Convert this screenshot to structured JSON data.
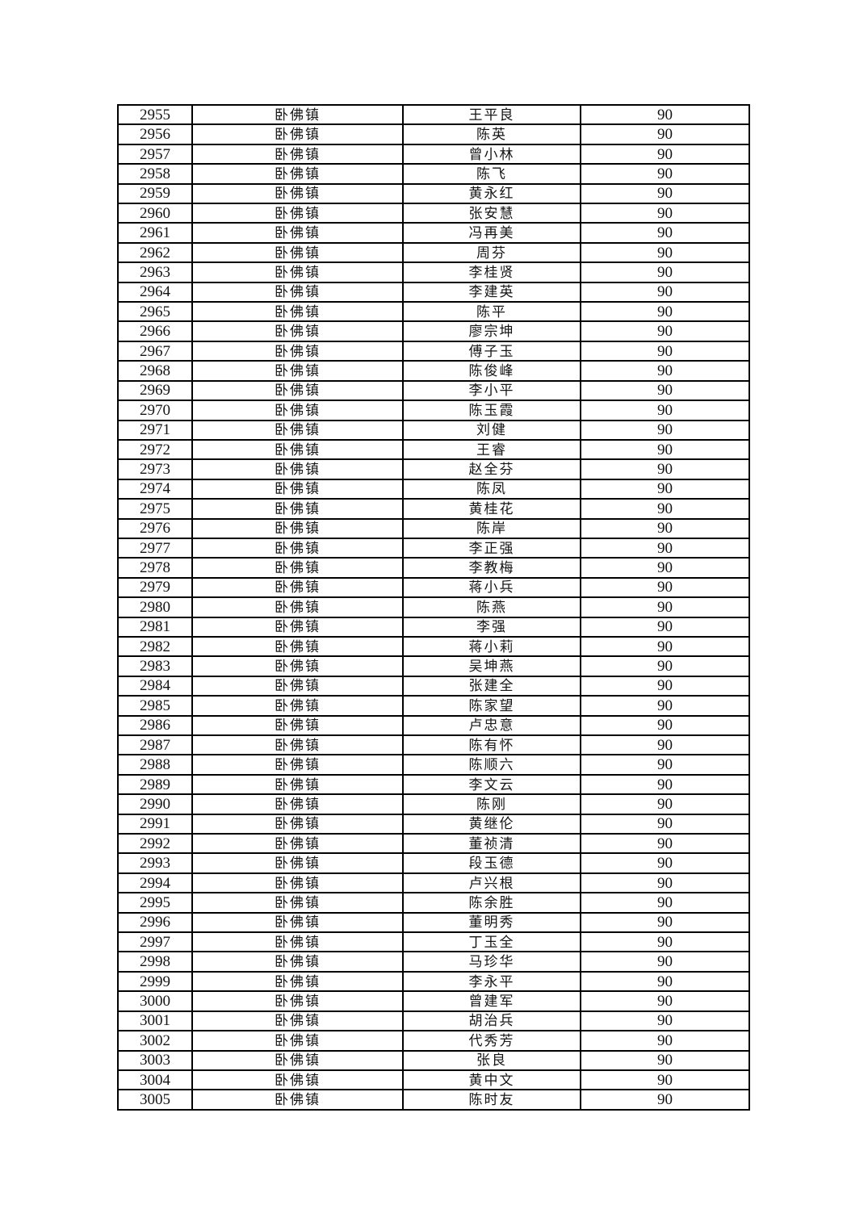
{
  "table": {
    "rows": [
      {
        "no": "2955",
        "town": "卧佛镇",
        "name": "王平良",
        "score": "90"
      },
      {
        "no": "2956",
        "town": "卧佛镇",
        "name": "陈英",
        "score": "90"
      },
      {
        "no": "2957",
        "town": "卧佛镇",
        "name": "曾小林",
        "score": "90"
      },
      {
        "no": "2958",
        "town": "卧佛镇",
        "name": "陈飞",
        "score": "90"
      },
      {
        "no": "2959",
        "town": "卧佛镇",
        "name": "黄永红",
        "score": "90"
      },
      {
        "no": "2960",
        "town": "卧佛镇",
        "name": "张安慧",
        "score": "90"
      },
      {
        "no": "2961",
        "town": "卧佛镇",
        "name": "冯再美",
        "score": "90"
      },
      {
        "no": "2962",
        "town": "卧佛镇",
        "name": "周芬",
        "score": "90"
      },
      {
        "no": "2963",
        "town": "卧佛镇",
        "name": "李桂贤",
        "score": "90"
      },
      {
        "no": "2964",
        "town": "卧佛镇",
        "name": "李建英",
        "score": "90"
      },
      {
        "no": "2965",
        "town": "卧佛镇",
        "name": "陈平",
        "score": "90"
      },
      {
        "no": "2966",
        "town": "卧佛镇",
        "name": "廖宗坤",
        "score": "90"
      },
      {
        "no": "2967",
        "town": "卧佛镇",
        "name": "傅子玉",
        "score": "90"
      },
      {
        "no": "2968",
        "town": "卧佛镇",
        "name": "陈俊峰",
        "score": "90"
      },
      {
        "no": "2969",
        "town": "卧佛镇",
        "name": "李小平",
        "score": "90"
      },
      {
        "no": "2970",
        "town": "卧佛镇",
        "name": "陈玉霞",
        "score": "90"
      },
      {
        "no": "2971",
        "town": "卧佛镇",
        "name": "刘健",
        "score": "90"
      },
      {
        "no": "2972",
        "town": "卧佛镇",
        "name": "王睿",
        "score": "90"
      },
      {
        "no": "2973",
        "town": "卧佛镇",
        "name": "赵全芬",
        "score": "90"
      },
      {
        "no": "2974",
        "town": "卧佛镇",
        "name": "陈凤",
        "score": "90"
      },
      {
        "no": "2975",
        "town": "卧佛镇",
        "name": "黄桂花",
        "score": "90"
      },
      {
        "no": "2976",
        "town": "卧佛镇",
        "name": "陈岸",
        "score": "90"
      },
      {
        "no": "2977",
        "town": "卧佛镇",
        "name": "李正强",
        "score": "90"
      },
      {
        "no": "2978",
        "town": "卧佛镇",
        "name": "李教梅",
        "score": "90"
      },
      {
        "no": "2979",
        "town": "卧佛镇",
        "name": "蒋小兵",
        "score": "90"
      },
      {
        "no": "2980",
        "town": "卧佛镇",
        "name": "陈燕",
        "score": "90"
      },
      {
        "no": "2981",
        "town": "卧佛镇",
        "name": "李强",
        "score": "90"
      },
      {
        "no": "2982",
        "town": "卧佛镇",
        "name": "蒋小莉",
        "score": "90"
      },
      {
        "no": "2983",
        "town": "卧佛镇",
        "name": "吴坤燕",
        "score": "90"
      },
      {
        "no": "2984",
        "town": "卧佛镇",
        "name": "张建全",
        "score": "90"
      },
      {
        "no": "2985",
        "town": "卧佛镇",
        "name": "陈家望",
        "score": "90"
      },
      {
        "no": "2986",
        "town": "卧佛镇",
        "name": "卢忠意",
        "score": "90"
      },
      {
        "no": "2987",
        "town": "卧佛镇",
        "name": "陈有怀",
        "score": "90"
      },
      {
        "no": "2988",
        "town": "卧佛镇",
        "name": "陈顺六",
        "score": "90"
      },
      {
        "no": "2989",
        "town": "卧佛镇",
        "name": "李文云",
        "score": "90"
      },
      {
        "no": "2990",
        "town": "卧佛镇",
        "name": "陈刚",
        "score": "90"
      },
      {
        "no": "2991",
        "town": "卧佛镇",
        "name": "黄继伦",
        "score": "90"
      },
      {
        "no": "2992",
        "town": "卧佛镇",
        "name": "董祯清",
        "score": "90"
      },
      {
        "no": "2993",
        "town": "卧佛镇",
        "name": "段玉德",
        "score": "90"
      },
      {
        "no": "2994",
        "town": "卧佛镇",
        "name": "卢兴根",
        "score": "90"
      },
      {
        "no": "2995",
        "town": "卧佛镇",
        "name": "陈余胜",
        "score": "90"
      },
      {
        "no": "2996",
        "town": "卧佛镇",
        "name": "董明秀",
        "score": "90"
      },
      {
        "no": "2997",
        "town": "卧佛镇",
        "name": "丁玉全",
        "score": "90"
      },
      {
        "no": "2998",
        "town": "卧佛镇",
        "name": "马珍华",
        "score": "90"
      },
      {
        "no": "2999",
        "town": "卧佛镇",
        "name": "李永平",
        "score": "90"
      },
      {
        "no": "3000",
        "town": "卧佛镇",
        "name": "曾建军",
        "score": "90"
      },
      {
        "no": "3001",
        "town": "卧佛镇",
        "name": "胡治兵",
        "score": "90"
      },
      {
        "no": "3002",
        "town": "卧佛镇",
        "name": "代秀芳",
        "score": "90"
      },
      {
        "no": "3003",
        "town": "卧佛镇",
        "name": "张良",
        "score": "90"
      },
      {
        "no": "3004",
        "town": "卧佛镇",
        "name": "黄中文",
        "score": "90"
      },
      {
        "no": "3005",
        "town": "卧佛镇",
        "name": "陈时友",
        "score": "90"
      }
    ]
  }
}
